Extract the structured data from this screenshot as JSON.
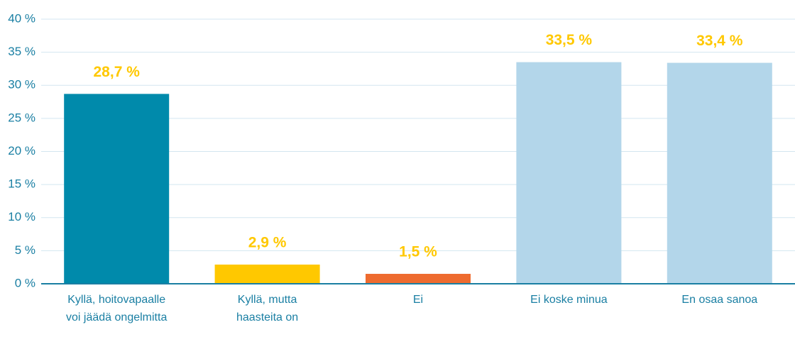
{
  "chart_data": {
    "type": "bar",
    "categories": [
      "Kyllä, hoitovapaalle voi jäädä ongelmitta",
      "Kyllä, mutta haasteita on",
      "Ei",
      "Ei koske minua",
      "En osaa sanoa"
    ],
    "values": [
      28.7,
      2.9,
      1.5,
      33.5,
      33.4
    ],
    "value_labels": [
      "28,7 %",
      "2,9 %",
      "1,5 %",
      "33,5 %",
      "33,4 %"
    ],
    "colors": [
      "#008aab",
      "#ffc800",
      "#ee6b2f",
      "#b3d6ea",
      "#b3d6ea"
    ],
    "ylim": [
      0,
      40
    ],
    "yticks": [
      {
        "value": 0,
        "label": "0 %"
      },
      {
        "value": 5,
        "label": "5 %"
      },
      {
        "value": 10,
        "label": "10 %"
      },
      {
        "value": 15,
        "label": "15 %"
      },
      {
        "value": 20,
        "label": "20 %"
      },
      {
        "value": 25,
        "label": "25 %"
      },
      {
        "value": 30,
        "label": "30 %"
      },
      {
        "value": 35,
        "label": "35 %"
      },
      {
        "value": 40,
        "label": "40 %"
      }
    ],
    "grid": true
  }
}
